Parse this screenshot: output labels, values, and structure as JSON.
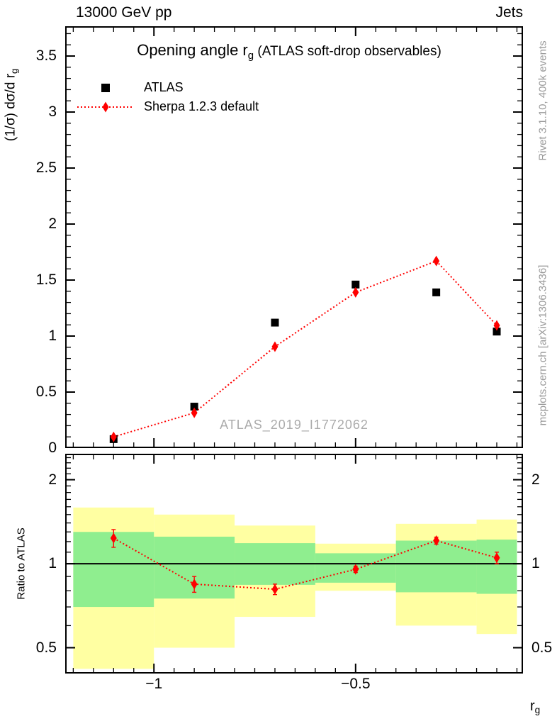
{
  "header": {
    "left": "13000 GeV pp",
    "right": "Jets"
  },
  "annotations": {
    "rivet": "Rivet 3.1.10,  400k events",
    "mcplots": "mcplots.cern.ch [arXiv:1306.3436]",
    "watermark": "ATLAS_2019_I1772062"
  },
  "labels": {
    "title_base": "Opening angle r",
    "title_sub": "g",
    "title_suffix": " (ATLAS soft-drop observables)",
    "ylabel_base": "(1/σ) dσ/d r",
    "ylabel_sub": "g",
    "xlabel_base": "r",
    "xlabel_sub": "g",
    "ratio_ylabel": "Ratio to ATLAS"
  },
  "colors": {
    "black": "#000000",
    "red": "#ff0000",
    "band_yellow": "#ffffa2",
    "band_green": "#8fee8f",
    "gray_text": "#999999",
    "watermark_gray": "#ababab"
  },
  "chart_data": [
    {
      "panel": "main",
      "type": "scatter",
      "title": "Opening angle r_g (ATLAS soft-drop observables)",
      "xlabel": "r_g",
      "ylabel": "(1/sigma) dsigma/d r_g",
      "xlim": [
        -1.22,
        -0.085
      ],
      "ylim": [
        0,
        3.766
      ],
      "grid": false,
      "legend_position": "top-left",
      "x": [
        -1.1,
        -0.9,
        -0.7,
        -0.5,
        -0.3,
        -0.15
      ],
      "bin_edges": [
        -1.2,
        -1.0,
        -0.8,
        -0.6,
        -0.4,
        -0.2,
        -0.1
      ],
      "xticks_major": [
        -1,
        -0.5
      ],
      "xticks_minor_step": 0.05,
      "yticks_major": [
        0,
        0.5,
        1,
        1.5,
        2,
        2.5,
        3,
        3.5
      ],
      "yticks_minor_step": 0.1,
      "series": [
        {
          "name": "ATLAS",
          "marker": "square",
          "color": "#000000",
          "line": "none",
          "values": [
            0.08,
            0.37,
            1.12,
            1.46,
            1.39,
            1.04
          ],
          "errors": [
            0.025,
            0.015,
            0.015,
            0.015,
            0.015,
            0.02
          ]
        },
        {
          "name": "Sherpa 1.2.3 default",
          "marker": "diamond",
          "color": "#ff0000",
          "line": "dotted",
          "values": [
            0.1,
            0.315,
            0.905,
            1.39,
            1.67,
            1.095
          ],
          "errors": [
            0.012,
            0.008,
            0.01,
            0.012,
            0.015,
            0.02
          ]
        }
      ]
    },
    {
      "panel": "ratio",
      "type": "ratio-bands",
      "ylabel": "Ratio to ATLAS",
      "yscale": "log",
      "xlim": [
        -1.22,
        -0.085
      ],
      "ylim": [
        0.404,
        2.478
      ],
      "reference_line": 1,
      "x": [
        -1.1,
        -0.9,
        -0.7,
        -0.5,
        -0.3,
        -0.15
      ],
      "values": [
        1.235,
        0.845,
        0.81,
        0.955,
        1.21,
        1.05
      ],
      "errors": [
        0.09,
        0.055,
        0.035,
        0.025,
        0.035,
        0.05
      ],
      "bands": [
        {
          "x0": -1.2,
          "x1": -1.0,
          "yellow": [
            0.42,
            1.59
          ],
          "green": [
            0.7,
            1.3
          ]
        },
        {
          "x0": -1.0,
          "x1": -0.8,
          "yellow": [
            0.5,
            1.5
          ],
          "green": [
            0.75,
            1.25
          ]
        },
        {
          "x0": -0.8,
          "x1": -0.6,
          "yellow": [
            0.645,
            1.37
          ],
          "green": [
            0.84,
            1.185
          ]
        },
        {
          "x0": -0.6,
          "x1": -0.4,
          "yellow": [
            0.8,
            1.18
          ],
          "green": [
            0.855,
            1.09
          ]
        },
        {
          "x0": -0.4,
          "x1": -0.2,
          "yellow": [
            0.6,
            1.39
          ],
          "green": [
            0.79,
            1.21
          ]
        },
        {
          "x0": -0.2,
          "x1": -0.1,
          "yellow": [
            0.56,
            1.44
          ],
          "green": [
            0.78,
            1.22
          ]
        }
      ],
      "yticks_major": [
        0.5,
        1,
        2
      ],
      "yticks_minor": [
        0.6,
        0.7,
        0.8,
        0.9,
        1.1,
        1.2,
        1.3,
        1.4,
        1.5,
        1.6,
        1.7,
        1.8,
        1.9,
        2.1,
        2.2,
        2.3,
        2.4
      ],
      "xticks_major": [
        -1,
        -0.5
      ],
      "xticks_minor_step": 0.05
    }
  ]
}
